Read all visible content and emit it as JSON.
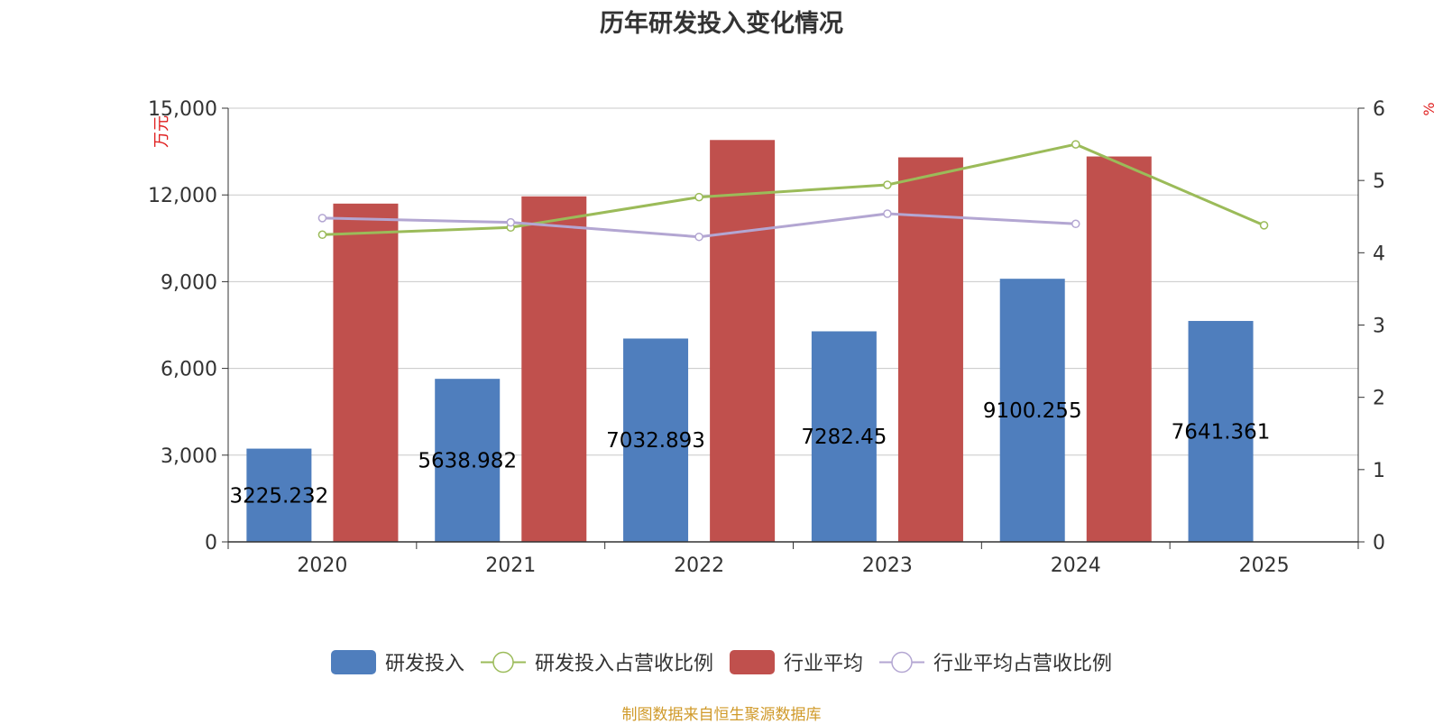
{
  "colors": {
    "rd_invest": "#4f7ebd",
    "rd_ratio": "#9bbb59",
    "industry_avg": "#c0504d",
    "industry_ratio": "#b3a6d2",
    "axis_unit": "#e02020",
    "source": "#d09a2a"
  },
  "chart_data": {
    "type": "bar",
    "title": "历年研发投入变化情况",
    "categories": [
      "2020",
      "2021",
      "2022",
      "2023",
      "2024",
      "2025"
    ],
    "y_left": {
      "label": "万元",
      "ylim": [
        0,
        15000
      ],
      "ticks": [
        "0",
        "3,000",
        "6,000",
        "9,000",
        "12,000",
        "15,000"
      ]
    },
    "y_right": {
      "label": "%",
      "ylim": [
        0,
        6
      ],
      "ticks": [
        "0",
        "1",
        "2",
        "3",
        "4",
        "5",
        "6"
      ]
    },
    "grid": true,
    "legend_position": "bottom",
    "series": [
      {
        "name": "研发投入",
        "type": "bar",
        "axis": "left",
        "values": [
          3225.232,
          5638.982,
          7032.893,
          7282.45,
          9100.255,
          7641.361
        ],
        "labels": [
          "3225.232",
          "5638.982",
          "7032.893",
          "7282.45",
          "9100.255",
          "7641.361"
        ]
      },
      {
        "name": "行业平均",
        "type": "bar",
        "axis": "left",
        "values": [
          11700,
          11950,
          13900,
          13300,
          13330,
          null
        ]
      },
      {
        "name": "研发投入占营收比例",
        "type": "line",
        "axis": "right",
        "values": [
          4.25,
          4.35,
          4.77,
          4.94,
          5.5,
          4.38
        ]
      },
      {
        "name": "行业平均占营收比例",
        "type": "line",
        "axis": "right",
        "values": [
          4.48,
          4.42,
          4.22,
          4.54,
          4.4,
          null
        ]
      }
    ]
  },
  "source": "制图数据来自恒生聚源数据库"
}
